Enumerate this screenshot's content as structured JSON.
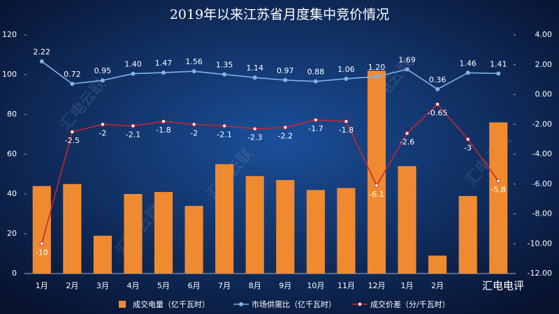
{
  "chart_data": {
    "type": "bar_line",
    "title": "2019年以来江苏省月度集中竞价情况",
    "categories": [
      "1月",
      "2月",
      "3月",
      "4月",
      "5月",
      "6月",
      "7月",
      "8月",
      "9月",
      "10月",
      "11月",
      "12月",
      "1月",
      "2月",
      null,
      null
    ],
    "series": [
      {
        "name": "成交电量（亿千瓦时）",
        "type": "bar",
        "color": "#f08a30",
        "axis": "y",
        "values": [
          44,
          45,
          19,
          40,
          41,
          34,
          55,
          49,
          47,
          42,
          43,
          102,
          54,
          9,
          39,
          76
        ]
      },
      {
        "name": "市场供需比（亿千瓦时）",
        "type": "line",
        "color": "#7fb2e8",
        "axis": "y2",
        "values": [
          2.22,
          0.72,
          0.95,
          1.4,
          1.47,
          1.56,
          1.35,
          1.14,
          0.97,
          0.88,
          1.06,
          1.2,
          1.69,
          0.36,
          1.46,
          1.41
        ],
        "value_labels": [
          "2.22",
          "0.72",
          "0.95",
          "1.40",
          "1.47",
          "1.56",
          "1.35",
          "1.14",
          "0.97",
          "0.88",
          "1.06",
          "1.20",
          "1.69",
          "0.36",
          "1.46",
          "1.41"
        ]
      },
      {
        "name": "成交价差（分/千瓦时）",
        "type": "line",
        "color": "#c8262e",
        "axis": "y2",
        "values": [
          -10,
          -2.5,
          -2,
          -2.1,
          -1.8,
          -2,
          -2.1,
          -2.3,
          -2.2,
          -1.7,
          -1.8,
          -6.1,
          -2.6,
          -0.65,
          -3,
          -5.8
        ]
      }
    ],
    "ylim": [
      0,
      120
    ],
    "yticks": [
      0,
      20,
      40,
      60,
      80,
      100,
      120
    ],
    "y2lim": [
      -12,
      4
    ],
    "y2ticks": [
      {
        "value": 4,
        "label": "4.00"
      },
      {
        "value": 2,
        "label": "2.00"
      },
      {
        "value": 0,
        "label": "0.00"
      },
      {
        "value": -2,
        "label": "-2.00"
      },
      {
        "value": -4,
        "label": "-4.00"
      },
      {
        "value": -6,
        "label": "-6.00"
      },
      {
        "value": -8,
        "label": "-8.00"
      },
      {
        "value": -10,
        "label": "-10.00"
      },
      {
        "value": -12,
        "label": "-12.00"
      }
    ],
    "grid": false,
    "legend": "bottom",
    "watermark": "汇电云联",
    "brand": "汇电电评"
  }
}
